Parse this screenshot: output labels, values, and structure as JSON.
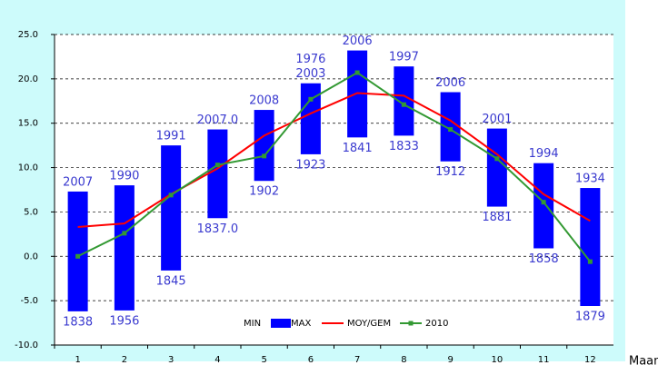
{
  "chart_data": {
    "type": "floating-bar-line",
    "x_label": "Maand",
    "categories": [
      "1",
      "2",
      "3",
      "4",
      "5",
      "6",
      "7",
      "8",
      "9",
      "10",
      "11",
      "12"
    ],
    "series": [
      {
        "name": "MIN",
        "color": "#0000ff",
        "values": [
          -6.2,
          -6.1,
          -1.6,
          4.3,
          8.5,
          11.5,
          13.4,
          13.6,
          10.7,
          5.6,
          0.9,
          -5.6
        ],
        "value_labels": [
          "1838",
          "1956",
          "1845",
          "1837.0",
          "1902",
          "1923",
          "1841",
          "1833",
          "1912",
          "1881",
          "1858",
          "1879"
        ]
      },
      {
        "name": "MAX",
        "color": "#0000ff",
        "values": [
          7.3,
          8.0,
          12.5,
          14.3,
          16.5,
          19.5,
          23.2,
          21.4,
          18.5,
          14.4,
          10.5,
          7.7
        ],
        "value_labels": [
          "2007",
          "1990",
          "1991",
          "2007.0",
          "2008",
          "2003",
          "2006",
          "1997",
          "2006",
          "2001",
          "1994",
          "1934"
        ]
      },
      {
        "name": "MOY/GEM",
        "color": "#ff0000",
        "values": [
          3.3,
          3.7,
          7.0,
          9.9,
          13.6,
          16.1,
          18.4,
          18.1,
          15.3,
          11.5,
          7.0,
          4.0
        ]
      },
      {
        "name": "2010",
        "color": "#339933",
        "values": [
          0.0,
          2.6,
          6.9,
          10.3,
          11.3,
          17.7,
          20.7,
          17.1,
          14.3,
          11.0,
          6.1,
          -0.6
        ]
      }
    ],
    "annotations": [
      {
        "text": "1976",
        "x": 6
      }
    ],
    "ylim": [
      -10,
      25
    ],
    "yticks": [
      {
        "value": -10,
        "label": "-10.0"
      },
      {
        "value": -5,
        "label": "-5.0"
      },
      {
        "value": 0,
        "label": "0.0"
      },
      {
        "value": 5,
        "label": "5.0"
      },
      {
        "value": 10,
        "label": "10.0"
      },
      {
        "value": 15,
        "label": "15.0"
      },
      {
        "value": 20,
        "label": "20.0"
      },
      {
        "value": 25,
        "label": "25.0"
      }
    ],
    "grid": true,
    "legend": "bottom"
  }
}
